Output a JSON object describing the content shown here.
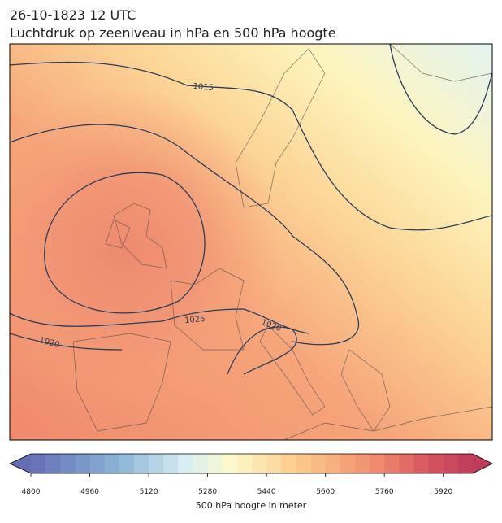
{
  "header": {
    "title": "26-10-1823 12 UTC",
    "subtitle": "Luchtdruk op zeeniveau in hPa en 500 hPa hoogte"
  },
  "map": {
    "contour_labels": [
      "1015",
      "1025",
      "1020",
      "1020"
    ]
  },
  "colorbar": {
    "label": "500 hPa hoogte in meter",
    "range": [
      4800,
      6000
    ],
    "ticks": [
      4800,
      4960,
      5120,
      5280,
      5440,
      5600,
      5760,
      5920
    ]
  }
}
